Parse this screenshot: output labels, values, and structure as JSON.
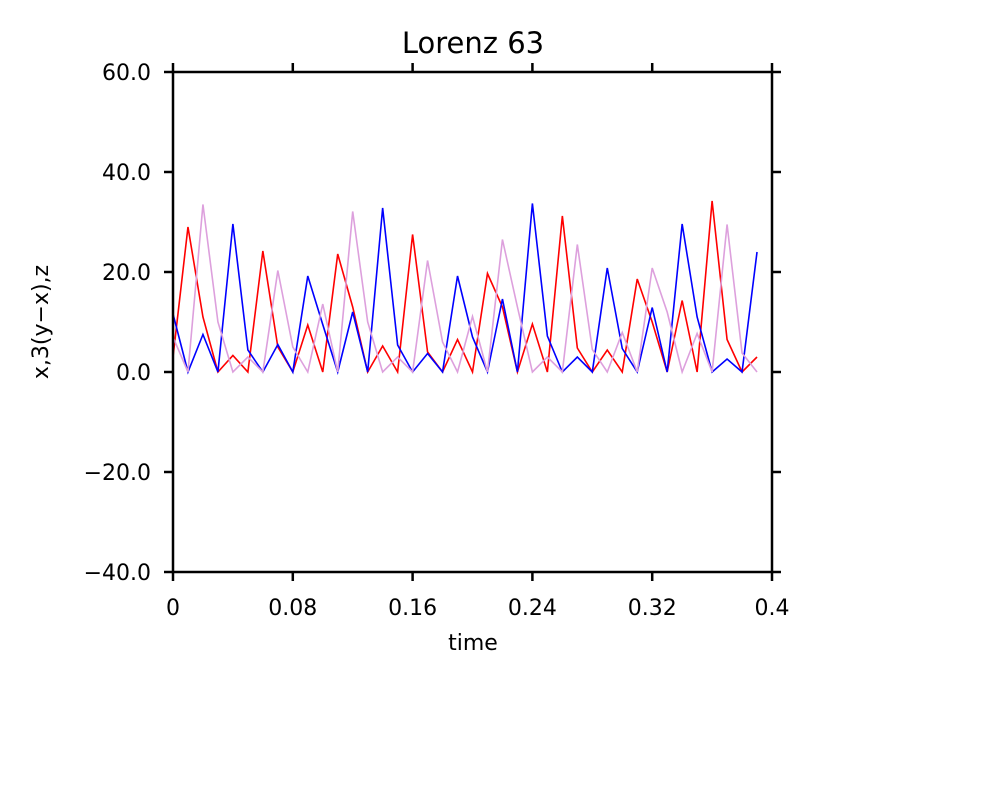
{
  "chart_data": {
    "type": "line",
    "title": "Lorenz 63",
    "xlabel": "time",
    "ylabel": "x,3(y−x),z",
    "xlim": [
      0,
      0.4
    ],
    "ylim": [
      -40,
      60
    ],
    "x_ticks": [
      0,
      0.08,
      0.16,
      0.24,
      0.32,
      0.4
    ],
    "x_tick_labels": [
      "0",
      "0.08",
      "0.16",
      "0.24",
      "0.32",
      "0.4"
    ],
    "y_ticks": [
      -40,
      -20,
      0,
      20,
      40,
      60
    ],
    "y_tick_labels": [
      "−40.0",
      "−20.0",
      "0.0",
      "20.0",
      "40.0",
      "60.0"
    ],
    "grid": false,
    "legend": "none",
    "x": [
      0,
      0.01,
      0.02,
      0.03,
      0.04,
      0.05,
      0.06,
      0.07,
      0.08,
      0.09,
      0.1,
      0.11,
      0.12,
      0.13,
      0.14,
      0.15,
      0.16,
      0.17,
      0.18,
      0.19,
      0.2,
      0.21,
      0.22,
      0.23,
      0.24,
      0.25,
      0.26,
      0.27,
      0.28,
      0.29,
      0.3,
      0.31,
      0.32,
      0.33,
      0.34,
      0.35,
      0.36,
      0.37,
      0.38,
      0.39
    ],
    "series": [
      {
        "color": "#ff0000",
        "values": [
          3,
          29,
          11,
          0,
          3.3,
          0,
          24.2,
          5,
          0,
          9.4,
          0,
          23.6,
          13,
          0,
          5.2,
          0,
          27.5,
          4,
          0,
          6.5,
          0,
          19.7,
          13,
          0,
          9.6,
          0,
          31.2,
          4.8,
          0,
          4.4,
          0,
          18.6,
          10,
          0,
          14.3,
          0,
          34.2,
          6.5,
          0,
          3
        ]
      },
      {
        "color": "#0000ff",
        "values": [
          11.6,
          0,
          7.5,
          0,
          29.6,
          4.4,
          0,
          5.5,
          0,
          19.2,
          9.5,
          0,
          12,
          0,
          32.8,
          5.4,
          0,
          3.7,
          0,
          19.2,
          7,
          0,
          14.6,
          0,
          33.7,
          7.2,
          0,
          3,
          0,
          20.8,
          4.7,
          0,
          12.9,
          0,
          29.6,
          11,
          0,
          2.6,
          0,
          24
        ]
      },
      {
        "color": "#dda0dd",
        "values": [
          7,
          0,
          33.5,
          10,
          0,
          3,
          0,
          20.3,
          5,
          0,
          13.6,
          0,
          32.1,
          10,
          0,
          3,
          0,
          22.3,
          6,
          0,
          11.1,
          0,
          26.5,
          13,
          0,
          3,
          0,
          25.5,
          4.5,
          0,
          7.9,
          0,
          20.8,
          12,
          0,
          7.7,
          0,
          29.5,
          3.8,
          0
        ]
      }
    ]
  }
}
